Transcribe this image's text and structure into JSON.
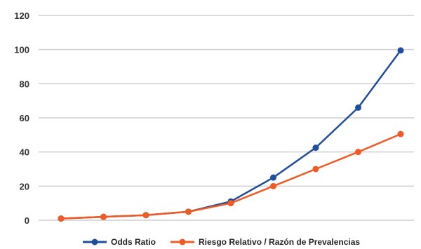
{
  "chart_data": {
    "type": "line",
    "x": [
      1,
      2,
      3,
      4,
      5,
      6,
      7,
      8,
      9
    ],
    "ylim": [
      0,
      120
    ],
    "yticks": [
      0,
      20,
      40,
      60,
      80,
      100,
      120
    ],
    "ytick_labels": [
      "0",
      "20",
      "40",
      "60",
      "80",
      "100",
      "120"
    ],
    "grid": true,
    "legend_position": "bottom-center",
    "series": [
      {
        "name": "Odds Ratio",
        "color": "#1f4e9c",
        "values": [
          1,
          2,
          3,
          5,
          11,
          25,
          42.5,
          66,
          99.5
        ]
      },
      {
        "name": "Riesgo Relativo / Razón de Prevalencias",
        "color": "#f05a24",
        "values": [
          1,
          2,
          3,
          5,
          10,
          20,
          30,
          40,
          50.5
        ]
      }
    ]
  }
}
